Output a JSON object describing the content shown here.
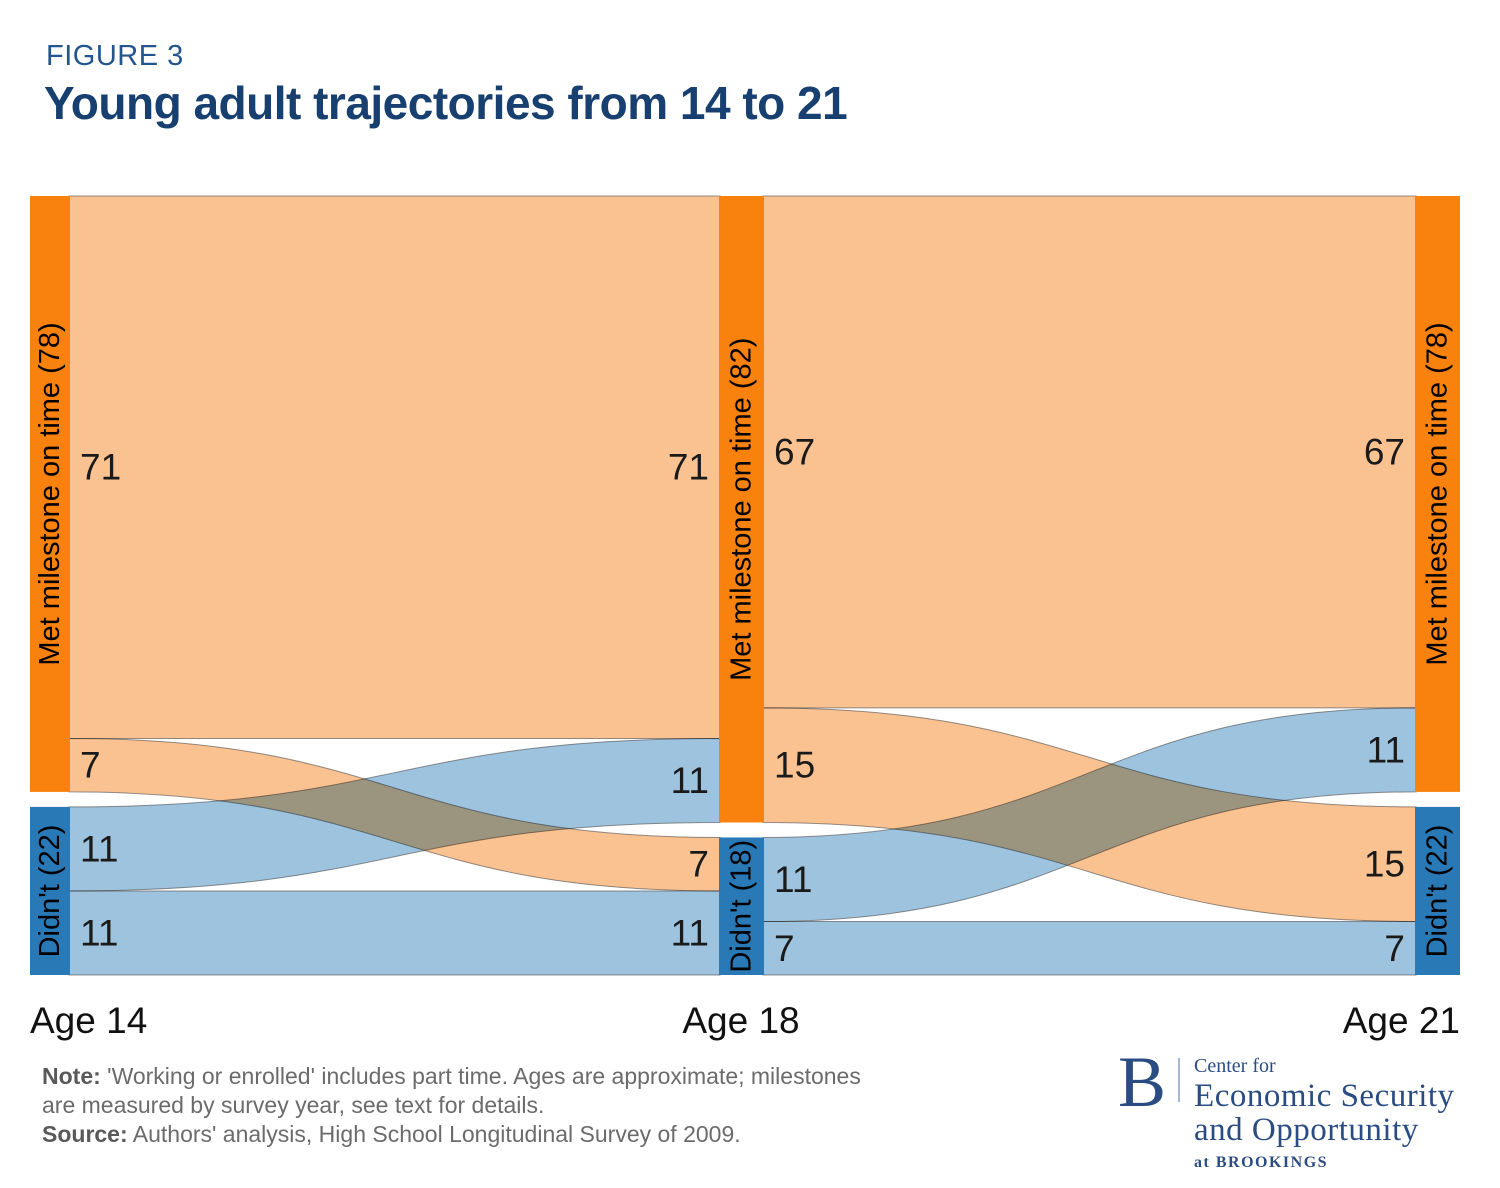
{
  "header": {
    "figure_label": "FIGURE 3",
    "title": "Young adult trajectories from 14 to 21"
  },
  "chart_data": {
    "type": "sankey",
    "title": "Young adult trajectories from 14 to 21",
    "x_labels": [
      "Age 14",
      "Age 18",
      "Age 21"
    ],
    "nodes": [
      {
        "id": "met14",
        "col": 0,
        "label": "Met milestone on time (78)",
        "total": 78,
        "group": "met"
      },
      {
        "id": "didnt14",
        "col": 0,
        "label": "Didn't (22)",
        "total": 22,
        "group": "didnt"
      },
      {
        "id": "met18",
        "col": 1,
        "label": "Met milestone on time (82)",
        "total": 82,
        "group": "met"
      },
      {
        "id": "didnt18",
        "col": 1,
        "label": "Didn't (18)",
        "total": 18,
        "group": "didnt"
      },
      {
        "id": "met21",
        "col": 2,
        "label": "Met milestone on time (78)",
        "total": 78,
        "group": "met"
      },
      {
        "id": "didnt21",
        "col": 2,
        "label": "Didn't (22)",
        "total": 22,
        "group": "didnt"
      }
    ],
    "links": [
      {
        "source": "met14",
        "target": "met18",
        "value": 71
      },
      {
        "source": "met14",
        "target": "didnt18",
        "value": 7
      },
      {
        "source": "didnt14",
        "target": "met18",
        "value": 11
      },
      {
        "source": "didnt14",
        "target": "didnt18",
        "value": 11
      },
      {
        "source": "met18",
        "target": "met21",
        "value": 67
      },
      {
        "source": "met18",
        "target": "didnt21",
        "value": 15
      },
      {
        "source": "didnt18",
        "target": "met21",
        "value": 11
      },
      {
        "source": "didnt18",
        "target": "didnt21",
        "value": 7
      }
    ],
    "colors": {
      "node_met": "#F8820D",
      "node_didnt": "#2A79B7",
      "flow_met": "#FBC291",
      "flow_didnt": "#9EC3DE",
      "node_text": "#000000",
      "flow_label_text": "#1a1a1a"
    },
    "legend_position": "none",
    "grid": false
  },
  "note": {
    "note_label": "Note:",
    "note_text": "'Working or enrolled' includes part time. Ages are approximate; milestones are measured by survey year, see text for details.",
    "source_label": "Source:",
    "source_text": "Authors' analysis, High School Longitudinal Survey of 2009."
  },
  "logo": {
    "b": "B",
    "center_for": "Center for",
    "line1": "Economic Security",
    "line2": "and Opportunity",
    "at_brookings": "at BROOKINGS"
  }
}
